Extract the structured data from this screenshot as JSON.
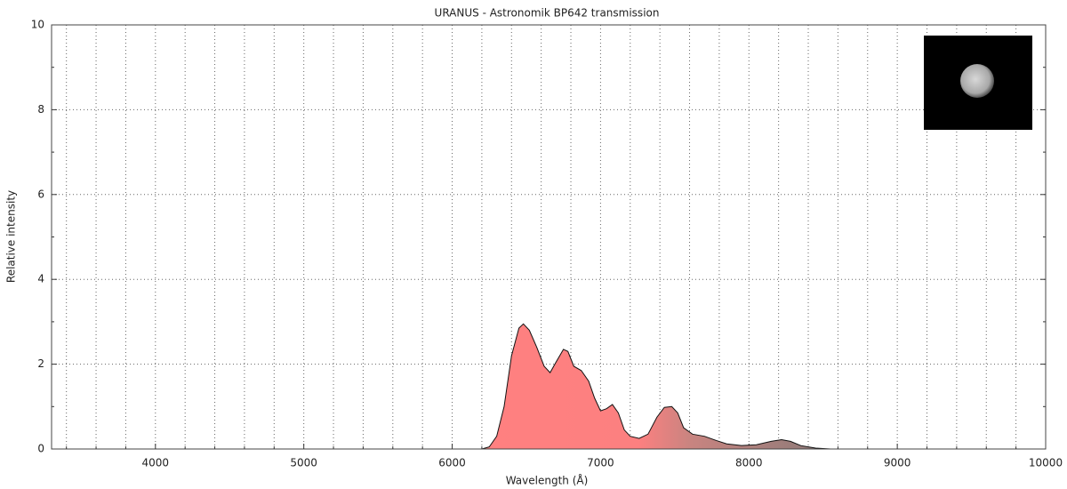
{
  "chart_data": {
    "type": "area",
    "title": "URANUS - Astronomik BP642 transmission",
    "x_label": "Wavelength (Å)",
    "y_label": "Relative intensity",
    "x": [
      6200,
      6250,
      6300,
      6350,
      6400,
      6450,
      6480,
      6520,
      6570,
      6620,
      6660,
      6700,
      6750,
      6780,
      6820,
      6870,
      6920,
      6960,
      7000,
      7040,
      7080,
      7120,
      7160,
      7200,
      7260,
      7320,
      7380,
      7430,
      7480,
      7520,
      7560,
      7620,
      7700,
      7780,
      7850,
      7950,
      8050,
      8150,
      8220,
      8280,
      8350,
      8450,
      8550
    ],
    "values": [
      0,
      0.05,
      0.3,
      1.0,
      2.2,
      2.85,
      2.95,
      2.8,
      2.4,
      1.95,
      1.8,
      2.05,
      2.35,
      2.3,
      1.95,
      1.85,
      1.6,
      1.2,
      0.9,
      0.95,
      1.05,
      0.85,
      0.45,
      0.3,
      0.25,
      0.35,
      0.75,
      0.98,
      1.0,
      0.85,
      0.5,
      0.35,
      0.3,
      0.2,
      0.12,
      0.08,
      0.1,
      0.18,
      0.22,
      0.18,
      0.08,
      0.02,
      0
    ],
    "xlim": [
      3300,
      10000
    ],
    "ylim": [
      0,
      10
    ],
    "xticks": [
      4000,
      5000,
      6000,
      7000,
      8000,
      9000,
      10000
    ],
    "yticks": [
      0,
      2,
      4,
      6,
      8,
      10
    ],
    "xminorticks": [
      3400,
      3600,
      3800,
      4200,
      4400,
      4600,
      4800,
      5200,
      5400,
      5600,
      5800,
      6200,
      6400,
      6600,
      6800,
      7200,
      7400,
      7600,
      7800,
      8200,
      8400,
      8600,
      8800,
      9200,
      9400,
      9600,
      9800
    ],
    "yminorticks": [
      1,
      3,
      5,
      7,
      9
    ],
    "grid": true
  }
}
